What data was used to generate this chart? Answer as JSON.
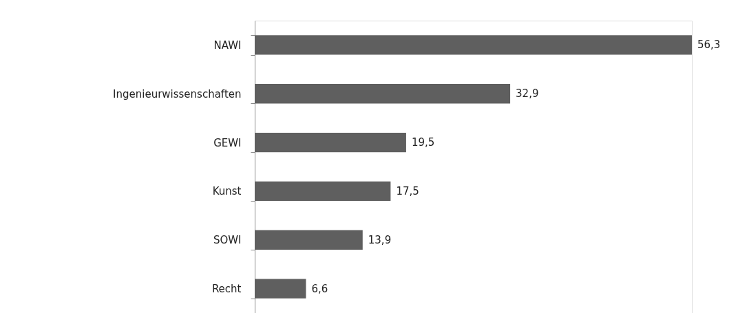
{
  "chart_data": {
    "type": "bar",
    "orientation": "horizontal",
    "categories": [
      "NAWI",
      "Ingenieurwissenschaften",
      "GEWI",
      "Kunst",
      "SOWI",
      "Recht"
    ],
    "values": [
      56.3,
      32.9,
      19.5,
      17.5,
      13.9,
      6.6
    ],
    "value_labels": [
      "56,3",
      "32,9",
      "19,5",
      "17,5",
      "13,9",
      "6,6"
    ],
    "color": "#5f5f5f",
    "legend": false
  }
}
